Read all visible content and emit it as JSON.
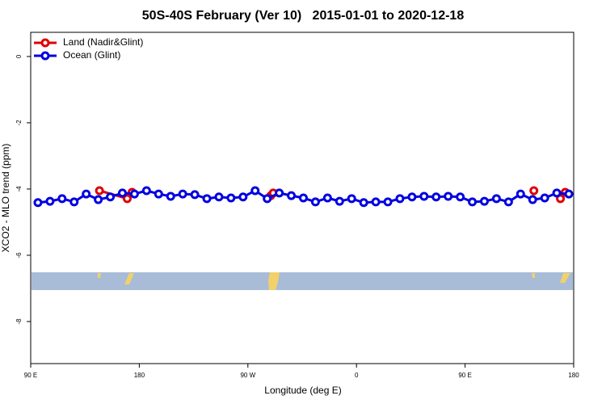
{
  "chart_data": {
    "type": "line",
    "title": "50S-40S February (Ver 10)   2015-01-01 to 2020-12-18",
    "x_label": "Longitude (deg E)",
    "y_label": "XCO2 - MLO trend (ppm)",
    "xlim": [
      90,
      540
    ],
    "ylim": [
      -9.27,
      0.73
    ],
    "xticks": [
      {
        "value": 90,
        "label": "90 E"
      },
      180,
      {
        "value": 270,
        "label": "90 W"
      },
      {
        "value": 360,
        "label": "0"
      },
      {
        "value": 450,
        "label": "90 E"
      },
      {
        "value": 540,
        "label": "180"
      }
    ],
    "yticks": [
      0,
      -2,
      -4,
      -6,
      -8
    ],
    "legend": "top-left",
    "series": [
      {
        "name": "Land (Nadir&Glint)",
        "color": "#e00000",
        "x": [
          147,
          170,
          174,
          null,
          289,
          291,
          null,
          507,
          null,
          529,
          533
        ],
        "values": [
          -4.05,
          -4.29,
          -4.1,
          null,
          -4.2,
          -4.12,
          null,
          -4.05,
          null,
          -4.29,
          -4.1
        ]
      },
      {
        "name": "Ocean (Glint)",
        "color": "#0000e0",
        "x": [
          96,
          106,
          116,
          126,
          136,
          146,
          156,
          166,
          176,
          186,
          196,
          206,
          216,
          226,
          236,
          246,
          256,
          266,
          276,
          286,
          296,
          306,
          316,
          326,
          336,
          346,
          356,
          366,
          376,
          386,
          396,
          406,
          416,
          426,
          436,
          446,
          456,
          466,
          476,
          486,
          496,
          506,
          516,
          526,
          536
        ],
        "values": [
          -4.41,
          -4.37,
          -4.29,
          -4.39,
          -4.15,
          -4.32,
          -4.24,
          -4.12,
          -4.15,
          -4.05,
          -4.15,
          -4.22,
          -4.15,
          -4.17,
          -4.29,
          -4.24,
          -4.27,
          -4.24,
          -4.05,
          -4.29,
          -4.12,
          -4.2,
          -4.27,
          -4.39,
          -4.27,
          -4.37,
          -4.29,
          -4.41,
          -4.39,
          -4.39,
          -4.29,
          -4.24,
          -4.22,
          -4.24,
          -4.22,
          -4.24,
          -4.39,
          -4.37,
          -4.29,
          -4.39,
          -4.15,
          -4.32,
          -4.27,
          -4.12,
          -4.15
        ]
      }
    ]
  }
}
